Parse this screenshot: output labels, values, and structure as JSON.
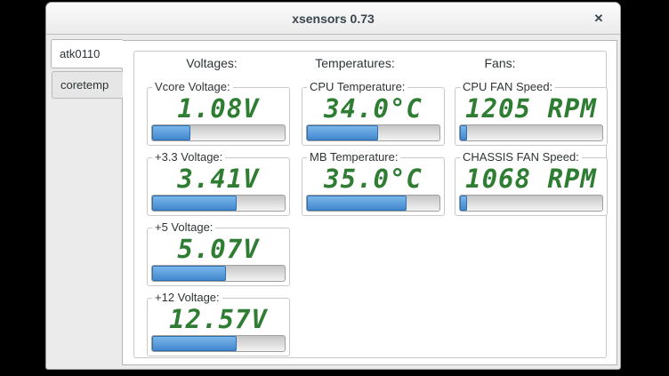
{
  "window": {
    "title": "xsensors 0.73",
    "close_label": "✕"
  },
  "tabs": [
    {
      "label": "atk0110",
      "active": true
    },
    {
      "label": "coretemp",
      "active": false
    }
  ],
  "panel": {
    "columns": [
      {
        "header": "Voltages:",
        "sensors": [
          {
            "label": "Vcore Voltage:",
            "value": "1.08V",
            "percent": 29
          },
          {
            "label": "+3.3 Voltage:",
            "value": "3.41V",
            "percent": 64
          },
          {
            "label": "+5 Voltage:",
            "value": "5.07V",
            "percent": 56
          },
          {
            "label": "+12 Voltage:",
            "value": "12.57V",
            "percent": 64
          }
        ]
      },
      {
        "header": "Temperatures:",
        "sensors": [
          {
            "label": "CPU Temperature:",
            "value": "34.0°C",
            "percent": 54
          },
          {
            "label": "MB Temperature:",
            "value": "35.0°C",
            "percent": 75
          }
        ]
      },
      {
        "header": "Fans:",
        "sensors": [
          {
            "label": "CPU FAN Speed:",
            "value": "1205 RPM",
            "percent": 5
          },
          {
            "label": "CHASSIS FAN Speed:",
            "value": "1068 RPM",
            "percent": 5
          }
        ]
      }
    ]
  },
  "colors": {
    "display_green": "#2e7d32",
    "progress_blue": "#4a90d9",
    "window_bg": "#ebebeb"
  }
}
